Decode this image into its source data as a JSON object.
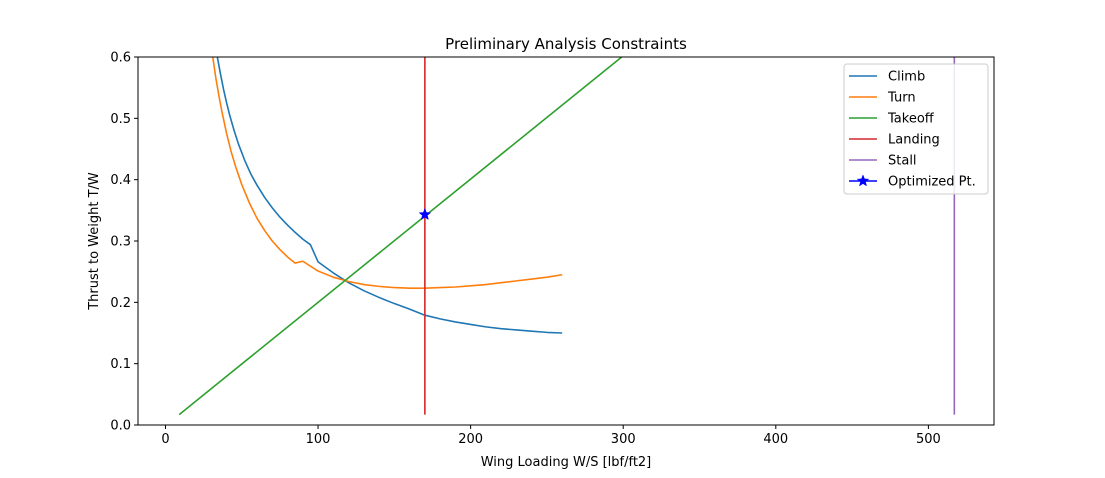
{
  "chart_data": {
    "type": "line",
    "title": "Preliminary Analysis Constraints",
    "xlabel": "Wing Loading W/S [lbf/ft2]",
    "ylabel": "Thrust to Weight T/W",
    "xlim": [
      -18,
      543
    ],
    "ylim": [
      0,
      0.6
    ],
    "xticks": [
      0,
      100,
      200,
      300,
      400,
      500
    ],
    "yticks": [
      0.0,
      0.1,
      0.2,
      0.3,
      0.4,
      0.5,
      0.6
    ],
    "grid": false,
    "legend_position": "top-right",
    "series": [
      {
        "name": "Climb",
        "color": "#1f77b4",
        "x": [
          34,
          36,
          38,
          40,
          42,
          45,
          48,
          52,
          56,
          60,
          65,
          70,
          75,
          80,
          85,
          90,
          95,
          100,
          110,
          120,
          130,
          140,
          150,
          160,
          170,
          180,
          190,
          200,
          210,
          220,
          230,
          240,
          250,
          260
        ],
        "y": [
          0.6,
          0.573,
          0.548,
          0.526,
          0.506,
          0.48,
          0.457,
          0.431,
          0.409,
          0.391,
          0.371,
          0.354,
          0.339,
          0.326,
          0.314,
          0.303,
          0.294,
          0.266,
          0.248,
          0.232,
          0.219,
          0.208,
          0.198,
          0.189,
          0.179,
          0.173,
          0.168,
          0.164,
          0.16,
          0.157,
          0.155,
          0.153,
          0.151,
          0.15
        ]
      },
      {
        "name": "Turn",
        "color": "#ff7f0e",
        "x": [
          31,
          33,
          35,
          37,
          40,
          43,
          46,
          50,
          55,
          60,
          65,
          70,
          75,
          80,
          85,
          90,
          100,
          110,
          120,
          130,
          140,
          150,
          160,
          170,
          180,
          190,
          200,
          210,
          220,
          230,
          240,
          250,
          260
        ],
        "y": [
          0.6,
          0.566,
          0.537,
          0.511,
          0.476,
          0.446,
          0.421,
          0.392,
          0.362,
          0.337,
          0.317,
          0.3,
          0.286,
          0.274,
          0.264,
          0.267,
          0.251,
          0.241,
          0.234,
          0.229,
          0.226,
          0.224,
          0.223,
          0.223,
          0.224,
          0.225,
          0.227,
          0.229,
          0.232,
          0.235,
          0.238,
          0.241,
          0.245
        ]
      },
      {
        "name": "Takeoff",
        "color": "#2ca02c",
        "x": [
          9,
          300
        ],
        "y": [
          0.017,
          0.602
        ]
      },
      {
        "name": "Landing",
        "color": "#d62728",
        "x": [
          170,
          170
        ],
        "y": [
          0.017,
          0.6
        ]
      },
      {
        "name": "Stall",
        "color": "#9467bd",
        "x": [
          517,
          517
        ],
        "y": [
          0.017,
          0.6
        ]
      }
    ],
    "points": [
      {
        "name": "Optimized Pt.",
        "color": "#0000ff",
        "marker": "star",
        "x": 170,
        "y": 0.343
      }
    ]
  }
}
